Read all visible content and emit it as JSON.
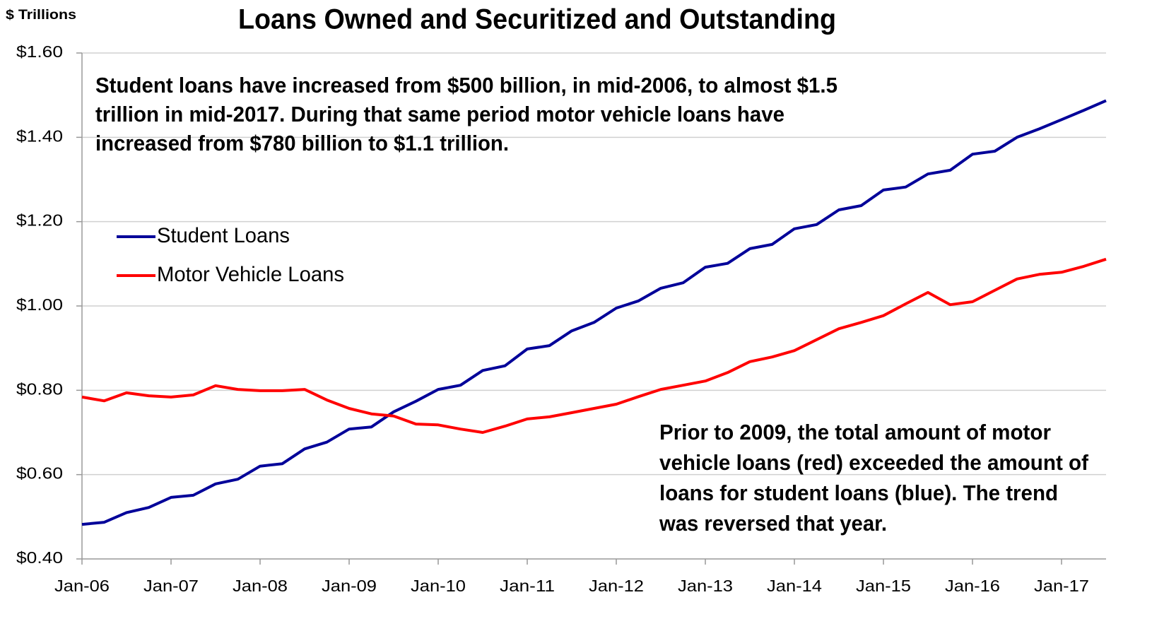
{
  "chart_data": {
    "type": "line",
    "title": "Loans Owned and Securitized and Outstanding",
    "y_axis_label": "$ Trillions",
    "annotations": [
      [
        "Student loans have increased from $500 billion, in mid-2006, to almost $1.5",
        "trillion in mid-2017. During that same period motor vehicle loans have",
        "increased from $780 billion to $1.1 trillion."
      ],
      [
        "Prior to 2009, the total amount of motor",
        "vehicle loans (red) exceeded the amount of",
        "loans for student loans (blue). The trend",
        "was reversed that year."
      ]
    ],
    "categories": [
      "Jan-06",
      null,
      null,
      null,
      "Jan-07",
      null,
      null,
      null,
      "Jan-08",
      null,
      null,
      null,
      "Jan-09",
      null,
      null,
      null,
      "Jan-10",
      null,
      null,
      null,
      "Jan-11",
      null,
      null,
      null,
      "Jan-12",
      null,
      null,
      null,
      "Jan-13",
      null,
      null,
      null,
      "Jan-14",
      null,
      null,
      null,
      "Jan-15",
      null,
      null,
      null,
      "Jan-16",
      null,
      null,
      null,
      "Jan-17",
      null,
      null
    ],
    "series": [
      {
        "name": "Student Loans",
        "color": "#000099",
        "values": [
          0.482,
          0.487,
          0.51,
          0.522,
          0.546,
          0.551,
          0.578,
          0.589,
          0.62,
          0.626,
          0.661,
          0.677,
          0.708,
          0.713,
          0.749,
          0.774,
          0.802,
          0.812,
          0.847,
          0.858,
          0.898,
          0.906,
          0.941,
          0.961,
          0.995,
          1.012,
          1.042,
          1.055,
          1.092,
          1.101,
          1.136,
          1.146,
          1.183,
          1.193,
          1.228,
          1.238,
          1.275,
          1.282,
          1.313,
          1.322,
          1.36,
          1.367,
          1.4,
          1.42,
          1.442,
          1.464,
          1.487
        ]
      },
      {
        "name": "Motor Vehicle Loans",
        "color": "#ff0000",
        "values": [
          0.784,
          0.775,
          0.794,
          0.787,
          0.784,
          0.789,
          0.811,
          0.802,
          0.799,
          0.799,
          0.802,
          0.777,
          0.757,
          0.744,
          0.739,
          0.72,
          0.718,
          0.708,
          0.7,
          0.715,
          0.732,
          0.737,
          0.747,
          0.757,
          0.767,
          0.785,
          0.802,
          0.812,
          0.822,
          0.842,
          0.868,
          0.879,
          0.894,
          0.92,
          0.946,
          0.961,
          0.977,
          1.005,
          1.032,
          1.003,
          1.01,
          1.037,
          1.064,
          1.075,
          1.08,
          1.094,
          1.111
        ]
      }
    ],
    "ylim": [
      0.4,
      1.6
    ],
    "yticks": [
      {
        "value": 0.4,
        "label": "$0.40"
      },
      {
        "value": 0.6,
        "label": "$0.60"
      },
      {
        "value": 0.8,
        "label": "$0.80"
      },
      {
        "value": 1.0,
        "label": "$1.00"
      },
      {
        "value": 1.2,
        "label": "$1.20"
      },
      {
        "value": 1.4,
        "label": "$1.40"
      },
      {
        "value": 1.6,
        "label": "$1.60"
      }
    ],
    "grid": true,
    "legend": "upper left"
  }
}
